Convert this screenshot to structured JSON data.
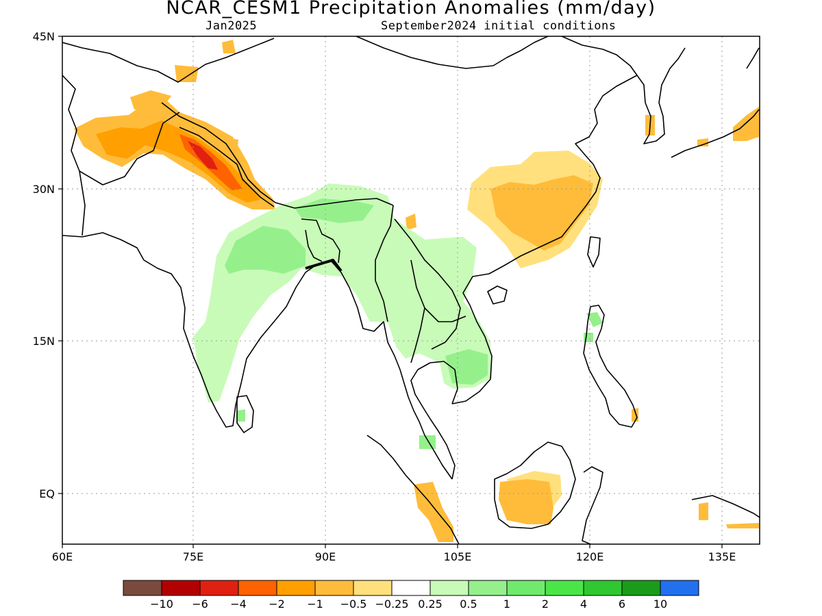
{
  "header": {
    "title": "NCAR_CESM1 Precipitation Anomalies (mm/day)",
    "target_month": "Jan2025",
    "init_conditions": "September2024 initial conditions"
  },
  "map": {
    "lon_range": [
      60,
      140
    ],
    "lat_range": [
      -5,
      45
    ],
    "lon_ticks": [
      {
        "value": 60,
        "label": "60E"
      },
      {
        "value": 75,
        "label": "75E"
      },
      {
        "value": 90,
        "label": "90E"
      },
      {
        "value": 105,
        "label": "105E"
      },
      {
        "value": 120,
        "label": "120E"
      },
      {
        "value": 135,
        "label": "135E"
      }
    ],
    "lat_ticks": [
      {
        "value": 45,
        "label": "45N"
      },
      {
        "value": 30,
        "label": "30N"
      },
      {
        "value": 15,
        "label": "15N"
      },
      {
        "value": 0,
        "label": "EQ"
      }
    ],
    "gridlines": "dotted"
  },
  "colorbar": {
    "colors": [
      "#7a4a3e",
      "#b30000",
      "#e02010",
      "#ff6200",
      "#ff9f00",
      "#ffbc3a",
      "#ffe07c",
      "#ffffff",
      "#c8fbb8",
      "#95f08c",
      "#70ea6c",
      "#4ae648",
      "#2fc830",
      "#1a9c1a",
      "#2070f0"
    ],
    "labels": [
      "-10",
      "-6",
      "-4",
      "-2",
      "-1",
      "-0.5",
      "-0.25",
      "0.25",
      "0.5",
      "1",
      "2",
      "4",
      "6",
      "10"
    ]
  }
}
